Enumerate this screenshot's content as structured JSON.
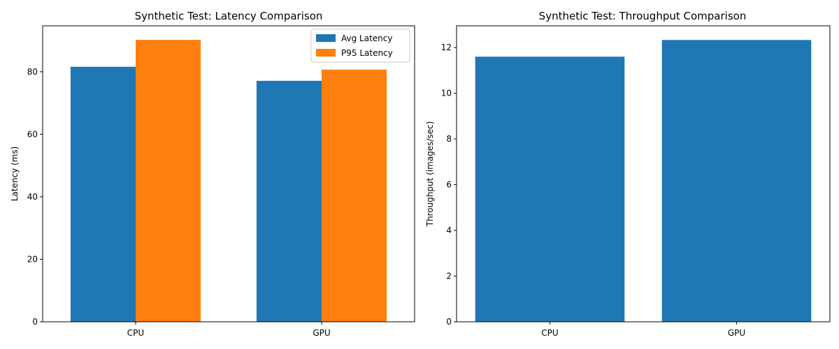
{
  "chart_data": [
    {
      "type": "bar",
      "title": "Synthetic Test: Latency Comparison",
      "xlabel": "",
      "ylabel": "Latency (ms)",
      "categories": [
        "CPU",
        "GPU"
      ],
      "series": [
        {
          "name": "Avg Latency",
          "values": [
            81.6,
            77.1
          ],
          "color": "#1f77b4"
        },
        {
          "name": "P95 Latency",
          "values": [
            90.2,
            80.7
          ],
          "color": "#ff7f0e"
        }
      ],
      "ylim": [
        0,
        94.7
      ],
      "yticks": [
        0,
        20,
        40,
        60,
        80
      ],
      "legend": "top-right",
      "grid": false
    },
    {
      "type": "bar",
      "title": "Synthetic Test: Throughput Comparison",
      "xlabel": "",
      "ylabel": "Throughput (images/sec)",
      "categories": [
        "CPU",
        "GPU"
      ],
      "series": [
        {
          "name": "",
          "values": [
            11.6,
            12.33
          ],
          "color": "#1f77b4"
        }
      ],
      "ylim": [
        0,
        12.95
      ],
      "yticks": [
        0,
        2,
        4,
        6,
        8,
        10,
        12
      ],
      "grid": false
    }
  ]
}
